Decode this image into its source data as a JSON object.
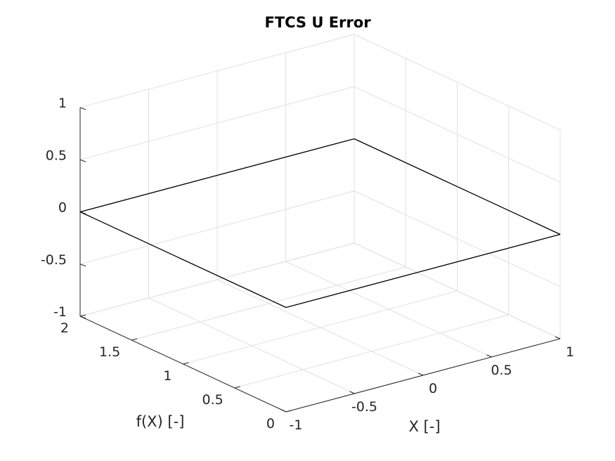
{
  "chart_data": {
    "type": "surface",
    "title": "FTCS U Error",
    "xlabel": "X [-]",
    "ylabel": "f(X) [-]",
    "zlabel": "",
    "xlim": [
      -1,
      1
    ],
    "ylim": [
      0,
      2
    ],
    "zlim": [
      -1,
      1
    ],
    "xticks": [
      "-1",
      "-0.5",
      "0",
      "0.5",
      "1"
    ],
    "yticks": [
      "0",
      "0.5",
      "1",
      "1.5",
      "2"
    ],
    "zticks": [
      "-1",
      "-0.5",
      "0",
      "0.5",
      "1"
    ],
    "grid": true,
    "surface": {
      "x": [
        -1,
        1
      ],
      "y": [
        0,
        2
      ],
      "z": [
        [
          0,
          0
        ],
        [
          0,
          0
        ]
      ]
    }
  }
}
